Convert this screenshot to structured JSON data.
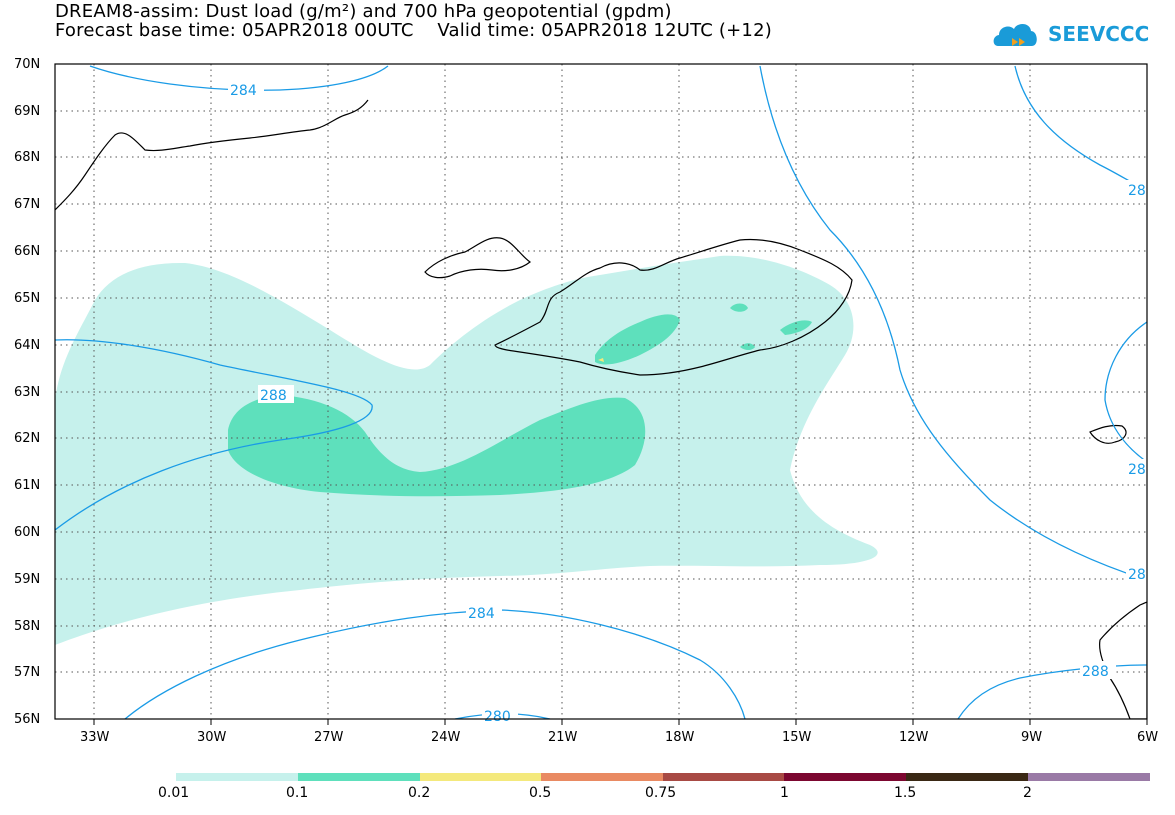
{
  "title": {
    "line1": "DREAM8-assim: Dust load (g/m²) and 700 hPa geopotential (gpdm)",
    "line2": "Forecast base time: 05APR2018 00UTC    Valid time: 05APR2018 12UTC (+12)"
  },
  "logo": {
    "text": "SEEVCCC"
  },
  "axes": {
    "lat_labels": [
      "70N",
      "69N",
      "68N",
      "67N",
      "66N",
      "65N",
      "64N",
      "63N",
      "62N",
      "61N",
      "60N",
      "59N",
      "58N",
      "57N",
      "56N"
    ],
    "lon_labels": [
      "33W",
      "30W",
      "27W",
      "24W",
      "21W",
      "18W",
      "15W",
      "12W",
      "9W",
      "6W"
    ]
  },
  "contours": {
    "labels": [
      "284",
      "288",
      "284",
      "280",
      "28",
      "28",
      "28",
      "288"
    ]
  },
  "colorbar": {
    "labels": [
      "0.01",
      "0.1",
      "0.2",
      "0.5",
      "0.75",
      "1",
      "1.5",
      "2"
    ],
    "colors": [
      "#c6f1ec",
      "#5ee0bc",
      "#f4e97c",
      "#e98a62",
      "#a84a44",
      "#7c0730",
      "#3a2814",
      "#9a7aa6"
    ]
  },
  "colors": {
    "dust_low": "#c6f1ec",
    "dust_mid": "#5ee0bc",
    "dust_high": "#f4e97c",
    "contour": "#1a9be6",
    "grid": "#555555"
  }
}
